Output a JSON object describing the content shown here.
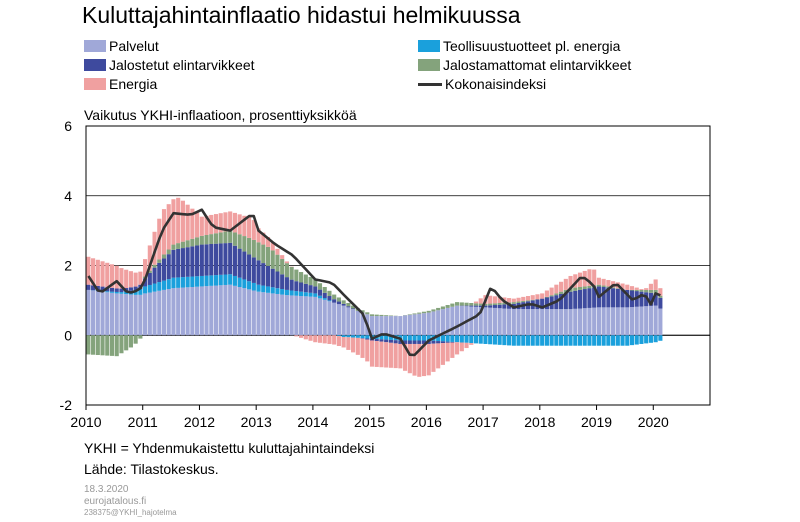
{
  "chart_data": {
    "type": "bar",
    "title": "Kuluttajahintainflaatio hidastui helmikuussa",
    "ylabel": "Vaikutus YKHI-inflaatioon, prosenttiyksikköä",
    "xlabel": "",
    "ylim": [
      -2,
      6
    ],
    "yticks": [
      "6",
      "4",
      "2",
      "0",
      "-2"
    ],
    "ytick_values": [
      6,
      4,
      2,
      0,
      -2
    ],
    "xticks": [
      "2010",
      "2011",
      "2012",
      "2013",
      "2014",
      "2015",
      "2016",
      "2017",
      "2018",
      "2019",
      "2020"
    ],
    "xrange_years": [
      2010,
      2021
    ],
    "frequency": "monthly",
    "period_start": "2010-01",
    "period_end": "2020-02",
    "grid": true,
    "legend_position": "top",
    "series_anchors": [
      {
        "name": "Palvelut",
        "color": "#a0a8d8",
        "kind": "bar",
        "anchors": [
          [
            2010.0,
            1.3
          ],
          [
            2010.5,
            1.2
          ],
          [
            2010.9,
            1.15
          ],
          [
            2011.0,
            1.2
          ],
          [
            2011.5,
            1.35
          ],
          [
            2012.0,
            1.4
          ],
          [
            2012.5,
            1.45
          ],
          [
            2013.0,
            1.25
          ],
          [
            2013.5,
            1.15
          ],
          [
            2014.0,
            1.1
          ],
          [
            2014.5,
            0.85
          ],
          [
            2015.0,
            0.55
          ],
          [
            2015.5,
            0.55
          ],
          [
            2016.0,
            0.65
          ],
          [
            2016.5,
            0.85
          ],
          [
            2017.0,
            0.8
          ],
          [
            2017.5,
            0.75
          ],
          [
            2018.0,
            0.75
          ],
          [
            2018.5,
            0.75
          ],
          [
            2019.0,
            0.8
          ],
          [
            2019.5,
            0.8
          ],
          [
            2020.0,
            0.85
          ],
          [
            2020.1,
            0.75
          ]
        ]
      },
      {
        "name": "Teollisuustuotteet pl. energia",
        "color": "#1aa0dc",
        "kind": "bar",
        "anchors": [
          [
            2010.0,
            0.0
          ],
          [
            2010.6,
            0.05
          ],
          [
            2011.0,
            0.2
          ],
          [
            2011.5,
            0.3
          ],
          [
            2012.0,
            0.3
          ],
          [
            2012.5,
            0.3
          ],
          [
            2013.0,
            0.2
          ],
          [
            2013.5,
            0.15
          ],
          [
            2014.0,
            0.1
          ],
          [
            2014.5,
            -0.05
          ],
          [
            2015.0,
            -0.1
          ],
          [
            2015.5,
            -0.15
          ],
          [
            2016.0,
            -0.15
          ],
          [
            2016.5,
            -0.2
          ],
          [
            2017.0,
            -0.25
          ],
          [
            2017.5,
            -0.3
          ],
          [
            2018.0,
            -0.3
          ],
          [
            2018.5,
            -0.3
          ],
          [
            2019.0,
            -0.3
          ],
          [
            2019.5,
            -0.3
          ],
          [
            2020.0,
            -0.2
          ],
          [
            2020.1,
            -0.15
          ]
        ]
      },
      {
        "name": "Jalostetut elintarvikkeet",
        "color": "#3e4a9e",
        "kind": "bar",
        "anchors": [
          [
            2010.0,
            0.15
          ],
          [
            2010.5,
            0.1
          ],
          [
            2010.9,
            0.1
          ],
          [
            2011.2,
            0.5
          ],
          [
            2011.5,
            0.8
          ],
          [
            2012.0,
            0.9
          ],
          [
            2012.5,
            0.9
          ],
          [
            2013.0,
            0.7
          ],
          [
            2013.3,
            0.5
          ],
          [
            2013.6,
            0.3
          ],
          [
            2014.0,
            0.2
          ],
          [
            2014.5,
            0.05
          ],
          [
            2015.0,
            -0.05
          ],
          [
            2015.5,
            -0.1
          ],
          [
            2016.0,
            -0.1
          ],
          [
            2016.5,
            0.0
          ],
          [
            2017.0,
            0.05
          ],
          [
            2017.5,
            0.15
          ],
          [
            2018.0,
            0.3
          ],
          [
            2018.5,
            0.5
          ],
          [
            2019.0,
            0.6
          ],
          [
            2019.5,
            0.5
          ],
          [
            2020.0,
            0.35
          ],
          [
            2020.1,
            0.3
          ]
        ]
      },
      {
        "name": "Jalostamattomat elintarvikkeet",
        "color": "#84a37c",
        "kind": "bar",
        "anchors": [
          [
            2010.0,
            -0.55
          ],
          [
            2010.5,
            -0.6
          ],
          [
            2010.8,
            -0.3
          ],
          [
            2011.0,
            0.05
          ],
          [
            2011.5,
            0.15
          ],
          [
            2012.0,
            0.25
          ],
          [
            2012.5,
            0.35
          ],
          [
            2012.9,
            0.5
          ],
          [
            2013.2,
            0.55
          ],
          [
            2013.5,
            0.4
          ],
          [
            2014.0,
            0.2
          ],
          [
            2014.5,
            0.1
          ],
          [
            2015.0,
            0.05
          ],
          [
            2015.5,
            0.0
          ],
          [
            2016.0,
            0.05
          ],
          [
            2016.5,
            0.1
          ],
          [
            2017.0,
            0.05
          ],
          [
            2017.5,
            0.05
          ],
          [
            2018.0,
            0.0
          ],
          [
            2018.5,
            0.1
          ],
          [
            2019.0,
            0.05
          ],
          [
            2019.5,
            0.0
          ],
          [
            2020.0,
            0.1
          ],
          [
            2020.1,
            0.05
          ]
        ]
      },
      {
        "name": "Energia",
        "color": "#f0a0a0",
        "kind": "bar",
        "anchors": [
          [
            2010.0,
            0.8
          ],
          [
            2010.5,
            0.65
          ],
          [
            2010.9,
            0.35
          ],
          [
            2011.0,
            0.5
          ],
          [
            2011.3,
            1.3
          ],
          [
            2011.6,
            1.3
          ],
          [
            2012.0,
            0.55
          ],
          [
            2012.5,
            0.55
          ],
          [
            2012.9,
            0.6
          ],
          [
            2013.0,
            0.4
          ],
          [
            2013.5,
            0.05
          ],
          [
            2014.0,
            -0.2
          ],
          [
            2014.5,
            -0.3
          ],
          [
            2014.9,
            -0.6
          ],
          [
            2015.0,
            -0.75
          ],
          [
            2015.5,
            -0.7
          ],
          [
            2015.8,
            -0.95
          ],
          [
            2016.0,
            -0.9
          ],
          [
            2016.5,
            -0.35
          ],
          [
            2017.0,
            0.25
          ],
          [
            2017.5,
            0.1
          ],
          [
            2018.0,
            0.15
          ],
          [
            2018.5,
            0.35
          ],
          [
            2018.9,
            0.5
          ],
          [
            2019.0,
            0.2
          ],
          [
            2019.5,
            0.15
          ],
          [
            2019.8,
            0.0
          ],
          [
            2020.0,
            0.3
          ],
          [
            2020.1,
            0.2
          ]
        ]
      },
      {
        "name": "Kokonaisindeksi",
        "color": "#333333",
        "kind": "line",
        "anchors": [
          [
            2010.0,
            1.7
          ],
          [
            2010.2,
            1.2
          ],
          [
            2010.5,
            1.55
          ],
          [
            2010.7,
            1.2
          ],
          [
            2010.9,
            1.3
          ],
          [
            2011.0,
            1.6
          ],
          [
            2011.3,
            3.0
          ],
          [
            2011.5,
            3.5
          ],
          [
            2011.8,
            3.45
          ],
          [
            2012.0,
            3.6
          ],
          [
            2012.2,
            3.1
          ],
          [
            2012.5,
            3.0
          ],
          [
            2012.9,
            3.5
          ],
          [
            2013.0,
            3.0
          ],
          [
            2013.3,
            2.6
          ],
          [
            2013.6,
            2.3
          ],
          [
            2014.0,
            1.6
          ],
          [
            2014.3,
            1.5
          ],
          [
            2014.6,
            1.0
          ],
          [
            2014.85,
            0.6
          ],
          [
            2015.0,
            -0.1
          ],
          [
            2015.2,
            0.05
          ],
          [
            2015.5,
            -0.1
          ],
          [
            2015.7,
            -0.65
          ],
          [
            2016.0,
            -0.15
          ],
          [
            2016.5,
            0.25
          ],
          [
            2016.9,
            0.6
          ],
          [
            2017.1,
            1.4
          ],
          [
            2017.3,
            1.0
          ],
          [
            2017.5,
            0.8
          ],
          [
            2017.8,
            0.9
          ],
          [
            2018.0,
            0.8
          ],
          [
            2018.3,
            1.0
          ],
          [
            2018.7,
            1.7
          ],
          [
            2018.9,
            1.45
          ],
          [
            2019.0,
            1.1
          ],
          [
            2019.3,
            1.5
          ],
          [
            2019.6,
            1.0
          ],
          [
            2019.8,
            1.2
          ],
          [
            2019.95,
            0.8
          ],
          [
            2020.0,
            1.2
          ],
          [
            2020.15,
            1.1
          ]
        ]
      }
    ]
  },
  "notes": {
    "definition": "YKHI = Yhdenmukaistettu  kuluttajahintaindeksi",
    "source": "Lähde:  Tilastokeskus."
  },
  "meta": {
    "date": "18.3.2020",
    "site": "eurojatalous.fi",
    "code": "238375@YKHI_hajotelma"
  }
}
